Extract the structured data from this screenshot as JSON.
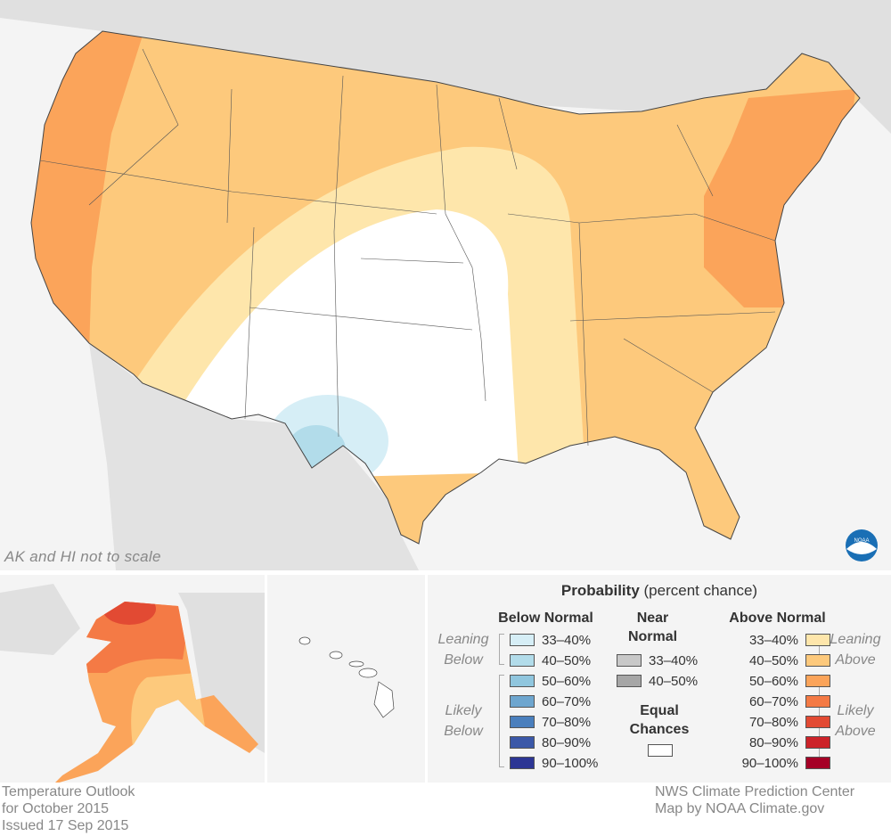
{
  "map": {
    "note": "AK and HI not to scale",
    "logo": "NOAA"
  },
  "legend": {
    "title_bold": "Probability",
    "title_rest": " (percent chance)",
    "below": {
      "header": "Below Normal",
      "leaning_label": [
        "Leaning",
        "Below"
      ],
      "likely_label": [
        "Likely",
        "Below"
      ],
      "items": [
        {
          "label": "33–40%",
          "color": "#d6eef6"
        },
        {
          "label": "40–50%",
          "color": "#b2dcea"
        },
        {
          "label": "50–60%",
          "color": "#90c6de"
        },
        {
          "label": "60–70%",
          "color": "#6ea6cf"
        },
        {
          "label": "70–80%",
          "color": "#4a7fbd"
        },
        {
          "label": "80–90%",
          "color": "#3b58a8"
        },
        {
          "label": "90–100%",
          "color": "#2c3594"
        }
      ]
    },
    "near": {
      "header": [
        "Near",
        "Normal"
      ],
      "items": [
        {
          "label": "33–40%",
          "color": "#c8c8c8"
        },
        {
          "label": "40–50%",
          "color": "#a6a6a6"
        }
      ]
    },
    "equal": {
      "header": [
        "Equal",
        "Chances"
      ],
      "color": "#ffffff"
    },
    "above": {
      "header": "Above Normal",
      "leaning_label": [
        "Leaning",
        "Above"
      ],
      "likely_label": [
        "Likely",
        "Above"
      ],
      "items": [
        {
          "label": "33–40%",
          "color": "#fee6ab"
        },
        {
          "label": "40–50%",
          "color": "#fdc97c"
        },
        {
          "label": "50–60%",
          "color": "#fba45a"
        },
        {
          "label": "60–70%",
          "color": "#f47a45"
        },
        {
          "label": "70–80%",
          "color": "#e24a33"
        },
        {
          "label": "80–90%",
          "color": "#cc2329"
        },
        {
          "label": "90–100%",
          "color": "#a50026"
        }
      ]
    }
  },
  "footer": {
    "left": [
      "Temperature Outlook",
      "for October 2015",
      "Issued 17 Sep 2015"
    ],
    "right": [
      "NWS Climate Prediction Center",
      "Map by NOAA Climate.gov"
    ]
  }
}
